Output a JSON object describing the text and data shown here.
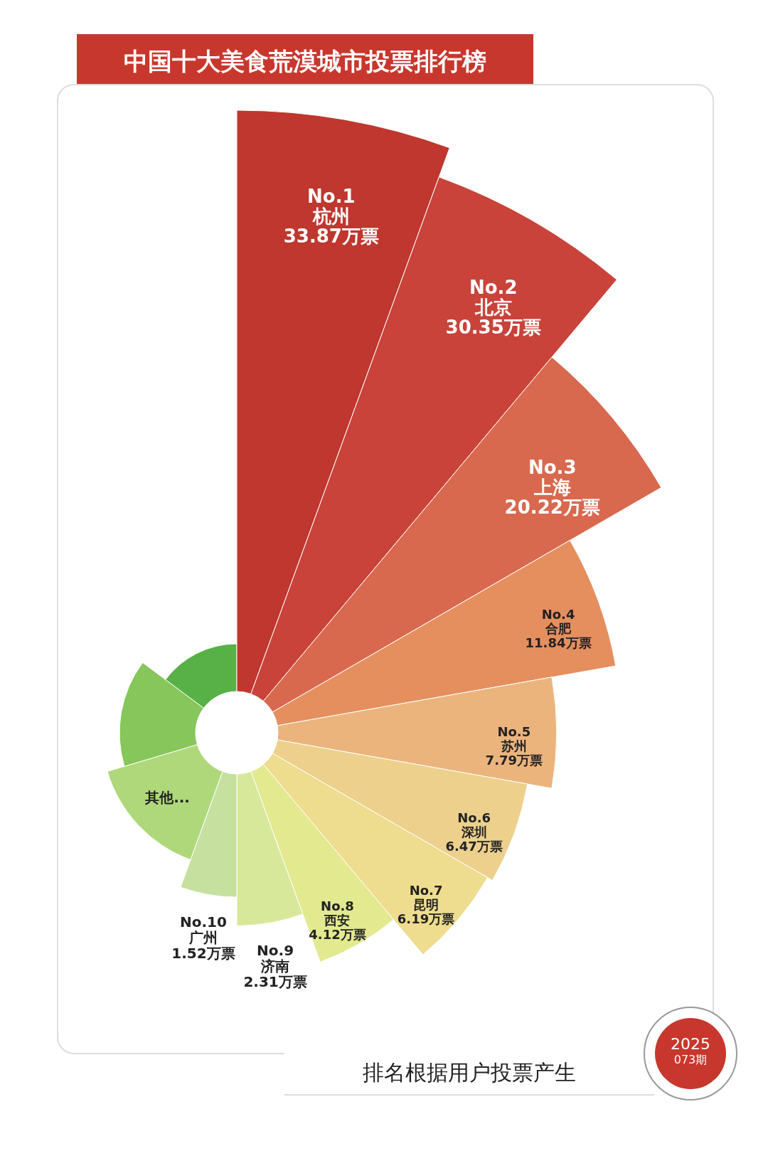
{
  "chart_data": {
    "type": "other",
    "title": "中国十大美食荒漠城市投票排行榜",
    "categories": [
      "No.1 杭州",
      "No.2 北京",
      "No.3 上海",
      "No.4 合肥",
      "No.5 苏州",
      "No.6 深圳",
      "No.7 昆明",
      "No.8 西安",
      "No.9 济南",
      "No.10 广州",
      "其他...",
      null,
      null
    ],
    "values": [
      33.87,
      30.35,
      20.22,
      11.84,
      7.79,
      6.47,
      6.19,
      4.12,
      2.31,
      1.52,
      null,
      null,
      null
    ],
    "value_labels": [
      "33.87万票",
      "30.35万票",
      "20.22万票",
      "11.84万票",
      "7.79万票",
      "6.47万票",
      "6.19万票",
      "4.12万票",
      "2.31万票",
      "1.52万票",
      null,
      null,
      null
    ],
    "colors": [
      "#bf372e",
      "#c9433a",
      "#d9694e",
      "#e58f5f",
      "#ebb47d",
      "#ecd08c",
      "#eedc8f",
      "#e3e98f",
      "#d8e89a",
      "#c6e0a0",
      "#aed87a",
      "#86c65a",
      "#57b147"
    ],
    "annotations": [
      "排名根据用户投票产生",
      "2025",
      "073期"
    ]
  }
}
